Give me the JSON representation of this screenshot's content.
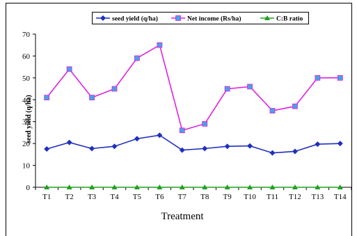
{
  "chart_data": {
    "type": "line",
    "title": "",
    "xlabel": "Treatment",
    "ylabel": "seed yield (q/ha)",
    "ylim": [
      0,
      70
    ],
    "yticks": [
      0,
      10,
      20,
      30,
      40,
      50,
      60,
      70
    ],
    "grid": false,
    "legend_position": "top",
    "categories": [
      "T1",
      "T2",
      "T3",
      "T4",
      "T5",
      "T6",
      "T7",
      "T8",
      "T9",
      "T10",
      "T11",
      "T12",
      "T13",
      "T14"
    ],
    "series": [
      {
        "name": "seed yield (q/ha)",
        "color": "#1f2fbf",
        "marker": "diamond",
        "values": [
          17.5,
          20.5,
          17.7,
          18.7,
          22.2,
          23.8,
          17.0,
          17.7,
          18.7,
          18.9,
          15.7,
          16.4,
          19.7,
          20.0
        ]
      },
      {
        "name": "Net income (Rs/ha)",
        "color": "#e020e0",
        "marker_color": "#4aa0e8",
        "marker": "square",
        "values": [
          41,
          54,
          41,
          45,
          59,
          65,
          26,
          29,
          45,
          46,
          35,
          37,
          50,
          50
        ]
      },
      {
        "name": "C:B ratio",
        "color": "#20a020",
        "marker": "triangle",
        "values": [
          0,
          0,
          0,
          0,
          0,
          0,
          0,
          0,
          0,
          0,
          0,
          0,
          0,
          0
        ]
      }
    ]
  }
}
